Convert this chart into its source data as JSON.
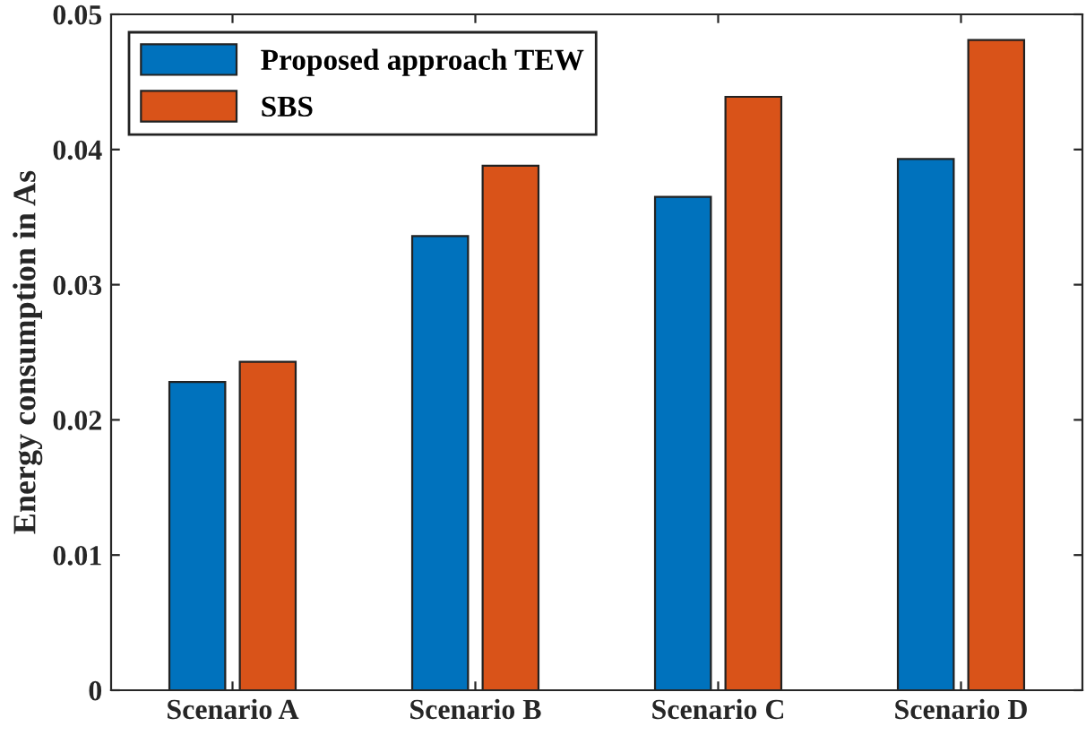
{
  "chart_data": {
    "type": "bar",
    "ylabel": "Energy consumption in As",
    "categories": [
      "Scenario A",
      "Scenario B",
      "Scenario C",
      "Scenario D"
    ],
    "series": [
      {
        "name": "Proposed approach TEW",
        "color": "#0072bd",
        "values": [
          0.0228,
          0.0336,
          0.0365,
          0.0393
        ]
      },
      {
        "name": "SBS",
        "color": "#d95319",
        "values": [
          0.0243,
          0.0388,
          0.0439,
          0.0481
        ]
      }
    ],
    "ylim": [
      0,
      0.05
    ],
    "yticks": [
      0,
      0.01,
      0.02,
      0.03,
      0.04,
      0.05
    ],
    "grid": false,
    "legend": "top left"
  }
}
